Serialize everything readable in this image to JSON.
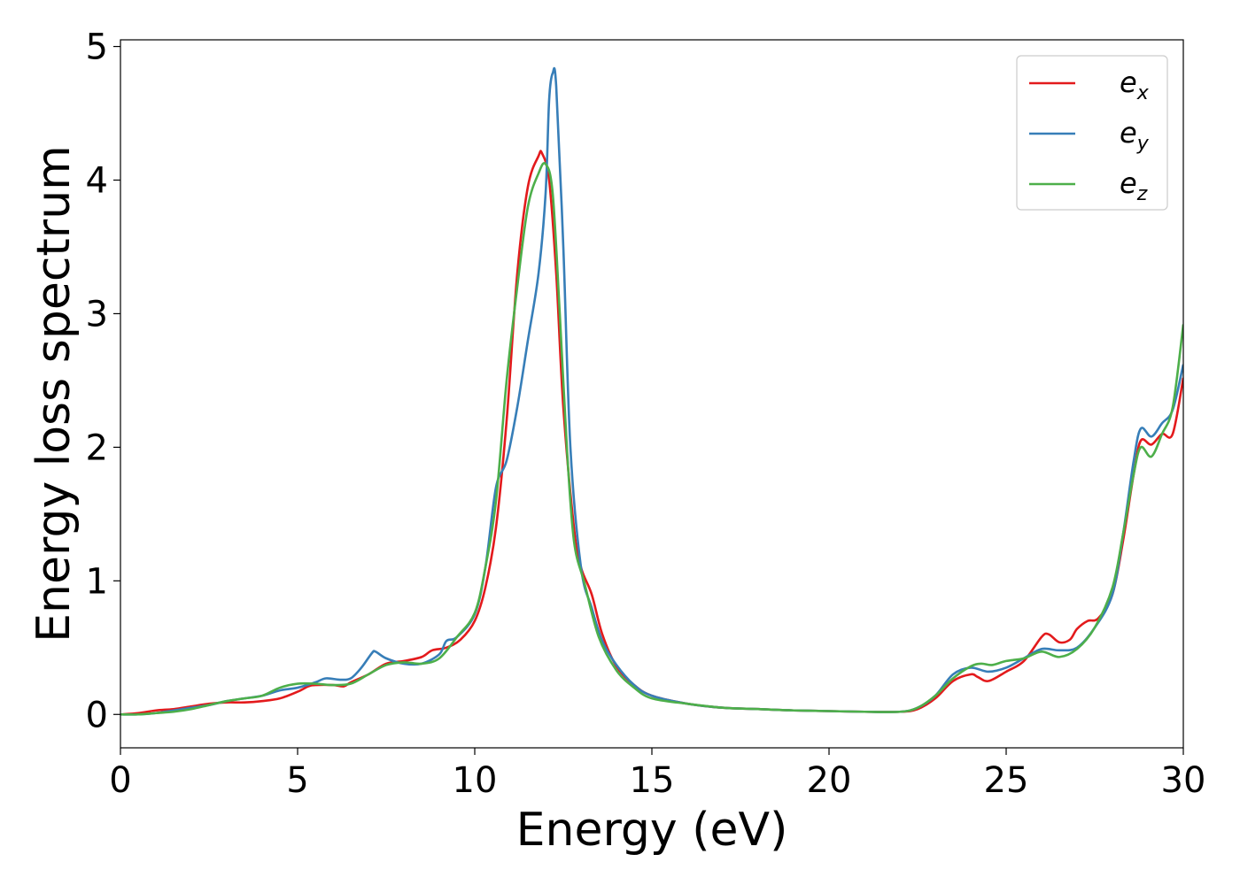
{
  "chart_data": {
    "type": "line",
    "xlabel": "Energy (eV)",
    "ylabel": "Energy loss spectrum",
    "xlim": [
      0,
      30
    ],
    "ylim": [
      -0.25,
      5.05
    ],
    "xticks": [
      0,
      5,
      10,
      15,
      20,
      25,
      30
    ],
    "yticks": [
      0,
      1,
      2,
      3,
      4,
      5
    ],
    "xtick_labels": [
      "0",
      "5",
      "10",
      "15",
      "20",
      "25",
      "30"
    ],
    "ytick_labels": [
      "0",
      "1",
      "2",
      "3",
      "4",
      "5"
    ],
    "grid": false,
    "legend_position": "top-right",
    "series": [
      {
        "name": "e_x",
        "label_main": "e",
        "label_sub": "x",
        "color": "#e31a1c",
        "points": [
          [
            0,
            0
          ],
          [
            0.5,
            0.01
          ],
          [
            1,
            0.03
          ],
          [
            1.5,
            0.04
          ],
          [
            2,
            0.06
          ],
          [
            2.5,
            0.08
          ],
          [
            3,
            0.09
          ],
          [
            3.5,
            0.09
          ],
          [
            4,
            0.1
          ],
          [
            4.5,
            0.12
          ],
          [
            5,
            0.17
          ],
          [
            5.3,
            0.21
          ],
          [
            5.5,
            0.22
          ],
          [
            6,
            0.22
          ],
          [
            6.3,
            0.21
          ],
          [
            6.5,
            0.24
          ],
          [
            7,
            0.3
          ],
          [
            7.5,
            0.38
          ],
          [
            8,
            0.4
          ],
          [
            8.5,
            0.43
          ],
          [
            8.8,
            0.48
          ],
          [
            9.2,
            0.5
          ],
          [
            9.6,
            0.56
          ],
          [
            10,
            0.7
          ],
          [
            10.3,
            0.95
          ],
          [
            10.6,
            1.4
          ],
          [
            10.9,
            2.2
          ],
          [
            11.2,
            3.3
          ],
          [
            11.5,
            3.95
          ],
          [
            11.8,
            4.18
          ],
          [
            11.9,
            4.2
          ],
          [
            12.1,
            4.0
          ],
          [
            12.3,
            3.3
          ],
          [
            12.5,
            2.3
          ],
          [
            12.8,
            1.4
          ],
          [
            13,
            1.1
          ],
          [
            13.3,
            0.9
          ],
          [
            13.6,
            0.6
          ],
          [
            14,
            0.36
          ],
          [
            14.5,
            0.22
          ],
          [
            15,
            0.14
          ],
          [
            16,
            0.08
          ],
          [
            17,
            0.05
          ],
          [
            18,
            0.04
          ],
          [
            19,
            0.03
          ],
          [
            20,
            0.025
          ],
          [
            21,
            0.02
          ],
          [
            22,
            0.02
          ],
          [
            22.5,
            0.04
          ],
          [
            23,
            0.12
          ],
          [
            23.5,
            0.25
          ],
          [
            24,
            0.3
          ],
          [
            24.2,
            0.28
          ],
          [
            24.5,
            0.25
          ],
          [
            25,
            0.32
          ],
          [
            25.5,
            0.4
          ],
          [
            26,
            0.58
          ],
          [
            26.2,
            0.6
          ],
          [
            26.5,
            0.54
          ],
          [
            26.8,
            0.56
          ],
          [
            27,
            0.64
          ],
          [
            27.3,
            0.7
          ],
          [
            27.6,
            0.72
          ],
          [
            28,
            0.9
          ],
          [
            28.3,
            1.3
          ],
          [
            28.6,
            1.8
          ],
          [
            28.8,
            2.05
          ],
          [
            29.1,
            2.02
          ],
          [
            29.4,
            2.1
          ],
          [
            29.7,
            2.1
          ],
          [
            30,
            2.52
          ]
        ]
      },
      {
        "name": "e_y",
        "label_main": "e",
        "label_sub": "y",
        "color": "#377eb8",
        "points": [
          [
            0,
            0
          ],
          [
            0.5,
            0.0
          ],
          [
            1,
            0.01
          ],
          [
            1.5,
            0.03
          ],
          [
            2,
            0.05
          ],
          [
            2.5,
            0.07
          ],
          [
            3,
            0.1
          ],
          [
            3.5,
            0.12
          ],
          [
            4,
            0.14
          ],
          [
            4.5,
            0.18
          ],
          [
            5,
            0.2
          ],
          [
            5.5,
            0.24
          ],
          [
            5.8,
            0.27
          ],
          [
            6.2,
            0.26
          ],
          [
            6.5,
            0.27
          ],
          [
            6.8,
            0.35
          ],
          [
            7.1,
            0.46
          ],
          [
            7.2,
            0.47
          ],
          [
            7.5,
            0.42
          ],
          [
            8,
            0.38
          ],
          [
            8.5,
            0.38
          ],
          [
            9,
            0.45
          ],
          [
            9.2,
            0.55
          ],
          [
            9.5,
            0.58
          ],
          [
            10,
            0.75
          ],
          [
            10.3,
            1.1
          ],
          [
            10.6,
            1.7
          ],
          [
            10.9,
            1.9
          ],
          [
            11.2,
            2.3
          ],
          [
            11.5,
            2.8
          ],
          [
            11.8,
            3.3
          ],
          [
            12,
            3.9
          ],
          [
            12.1,
            4.6
          ],
          [
            12.2,
            4.8
          ],
          [
            12.3,
            4.7
          ],
          [
            12.5,
            3.5
          ],
          [
            12.7,
            2.0
          ],
          [
            13,
            1.1
          ],
          [
            13.3,
            0.8
          ],
          [
            13.6,
            0.55
          ],
          [
            14,
            0.37
          ],
          [
            14.5,
            0.22
          ],
          [
            15,
            0.14
          ],
          [
            16,
            0.08
          ],
          [
            17,
            0.05
          ],
          [
            18,
            0.04
          ],
          [
            19,
            0.03
          ],
          [
            20,
            0.025
          ],
          [
            21,
            0.02
          ],
          [
            22,
            0.02
          ],
          [
            22.5,
            0.05
          ],
          [
            23,
            0.14
          ],
          [
            23.5,
            0.3
          ],
          [
            24,
            0.35
          ],
          [
            24.5,
            0.32
          ],
          [
            25,
            0.35
          ],
          [
            25.5,
            0.42
          ],
          [
            26,
            0.49
          ],
          [
            26.5,
            0.48
          ],
          [
            27,
            0.5
          ],
          [
            27.5,
            0.65
          ],
          [
            28,
            0.9
          ],
          [
            28.3,
            1.35
          ],
          [
            28.6,
            1.9
          ],
          [
            28.8,
            2.14
          ],
          [
            29.1,
            2.08
          ],
          [
            29.4,
            2.18
          ],
          [
            29.7,
            2.28
          ],
          [
            30,
            2.62
          ]
        ]
      },
      {
        "name": "e_z",
        "label_main": "e",
        "label_sub": "z",
        "color": "#4daf4a",
        "points": [
          [
            0,
            0
          ],
          [
            0.5,
            0.0
          ],
          [
            1,
            0.01
          ],
          [
            1.5,
            0.02
          ],
          [
            2,
            0.04
          ],
          [
            2.5,
            0.07
          ],
          [
            3,
            0.1
          ],
          [
            3.5,
            0.12
          ],
          [
            4,
            0.14
          ],
          [
            4.5,
            0.2
          ],
          [
            5,
            0.23
          ],
          [
            5.5,
            0.23
          ],
          [
            6,
            0.22
          ],
          [
            6.5,
            0.23
          ],
          [
            7,
            0.3
          ],
          [
            7.5,
            0.37
          ],
          [
            8,
            0.39
          ],
          [
            8.5,
            0.38
          ],
          [
            9,
            0.42
          ],
          [
            9.5,
            0.58
          ],
          [
            10,
            0.76
          ],
          [
            10.3,
            1.1
          ],
          [
            10.6,
            1.6
          ],
          [
            10.9,
            2.5
          ],
          [
            11.2,
            3.2
          ],
          [
            11.5,
            3.8
          ],
          [
            11.8,
            4.05
          ],
          [
            12,
            4.12
          ],
          [
            12.2,
            3.9
          ],
          [
            12.4,
            3.0
          ],
          [
            12.6,
            2.0
          ],
          [
            12.8,
            1.3
          ],
          [
            13.1,
            0.98
          ],
          [
            13.5,
            0.58
          ],
          [
            14,
            0.33
          ],
          [
            14.5,
            0.2
          ],
          [
            15,
            0.12
          ],
          [
            16,
            0.08
          ],
          [
            17,
            0.05
          ],
          [
            18,
            0.04
          ],
          [
            19,
            0.03
          ],
          [
            20,
            0.025
          ],
          [
            21,
            0.02
          ],
          [
            22,
            0.02
          ],
          [
            22.5,
            0.05
          ],
          [
            23,
            0.14
          ],
          [
            23.5,
            0.27
          ],
          [
            24,
            0.36
          ],
          [
            24.3,
            0.38
          ],
          [
            24.6,
            0.37
          ],
          [
            25,
            0.4
          ],
          [
            25.5,
            0.42
          ],
          [
            26,
            0.47
          ],
          [
            26.5,
            0.43
          ],
          [
            27,
            0.49
          ],
          [
            27.5,
            0.65
          ],
          [
            28,
            0.95
          ],
          [
            28.3,
            1.35
          ],
          [
            28.6,
            1.8
          ],
          [
            28.8,
            2.0
          ],
          [
            29.1,
            1.93
          ],
          [
            29.4,
            2.1
          ],
          [
            29.7,
            2.3
          ],
          [
            30,
            2.92
          ]
        ]
      }
    ]
  }
}
